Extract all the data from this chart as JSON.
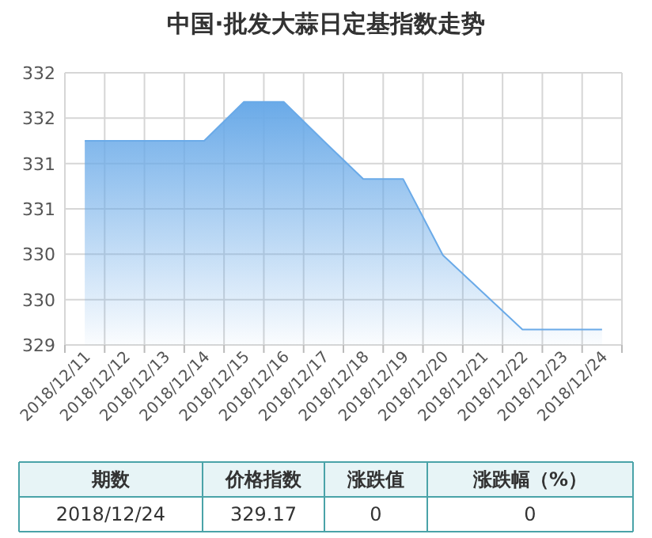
{
  "chart_data": {
    "type": "area",
    "title": "中国·批发大蒜日定基指数走势",
    "categories": [
      "2018/12/11",
      "2018/12/12",
      "2018/12/13",
      "2018/12/14",
      "2018/12/15",
      "2018/12/16",
      "2018/12/17",
      "2018/12/18",
      "2018/12/19",
      "2018/12/20",
      "2018/12/21",
      "2018/12/22",
      "2018/12/23",
      "2018/12/24"
    ],
    "values": [
      331.25,
      331.25,
      331.25,
      331.25,
      331.68,
      331.68,
      331.25,
      330.83,
      330.83,
      329.99,
      329.58,
      329.17,
      329.17,
      329.17
    ],
    "color": "#6aaae8",
    "ylim": [
      329,
      332
    ],
    "yticks": [
      {
        "value": 329,
        "label": "329"
      },
      {
        "value": 329.5,
        "label": "330"
      },
      {
        "value": 330,
        "label": "330"
      },
      {
        "value": 330.5,
        "label": "331"
      },
      {
        "value": 331,
        "label": "331"
      },
      {
        "value": 331.5,
        "label": "332"
      },
      {
        "value": 332,
        "label": "332"
      }
    ],
    "grid": true,
    "annotations": [
      "期数",
      "价格指数",
      "涨跌值",
      "涨跌幅（%）",
      "2018/12/24",
      "329.17",
      "0",
      "0"
    ]
  }
}
